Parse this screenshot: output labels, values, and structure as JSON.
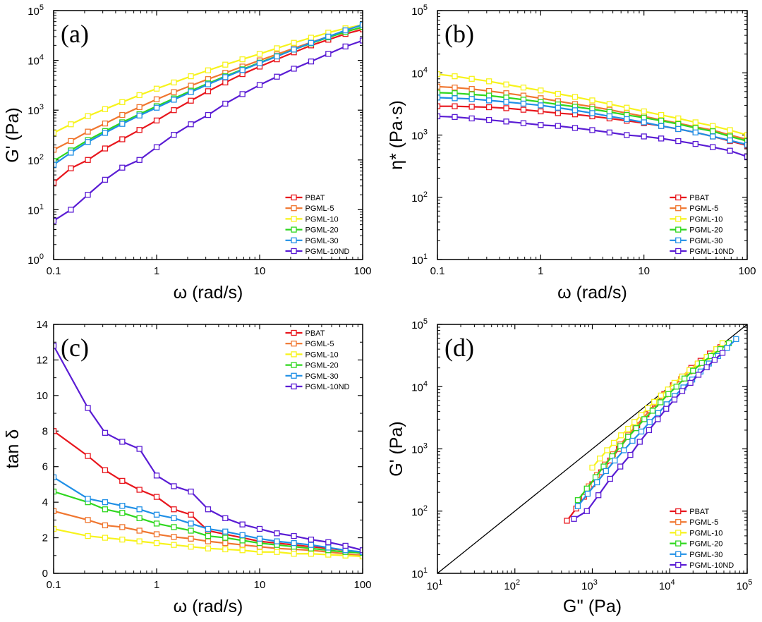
{
  "series_colors": {
    "PBAT": "#e8161d",
    "PGML-5": "#f0762f",
    "PGML-10": "#f7f31c",
    "PGML-20": "#2fd71f",
    "PGML-30": "#1f8fe6",
    "PGML-10ND": "#5a1cd4"
  },
  "marker": "open-square",
  "chart_data": [
    {
      "panel": "(a)",
      "type": "line",
      "xscale": "log",
      "yscale": "log",
      "xlabel": "ω (rad/s)",
      "ylabel": "G' (Pa)",
      "xlim": [
        0.1,
        100
      ],
      "ylim": [
        1,
        100000
      ],
      "xticks": [
        0.1,
        1,
        10,
        100
      ],
      "xticklabels": [
        "0.1",
        "1",
        "10",
        "100"
      ],
      "yticks": [
        1,
        10,
        100,
        1000,
        10000,
        100000
      ],
      "ytick_exponents": [
        "0",
        "1",
        "2",
        "3",
        "4",
        "5"
      ],
      "legend_position": "bottom-right",
      "x": [
        0.1,
        0.147,
        0.215,
        0.316,
        0.464,
        0.681,
        1.0,
        1.47,
        2.15,
        3.16,
        4.64,
        6.81,
        10,
        14.7,
        21.5,
        31.6,
        46.4,
        68.1,
        100
      ],
      "series": [
        {
          "name": "PBAT",
          "values": [
            35,
            68,
            100,
            170,
            260,
            400,
            620,
            1000,
            1550,
            2400,
            3600,
            5300,
            7500,
            10500,
            14500,
            20000,
            26000,
            34000,
            42000
          ]
        },
        {
          "name": "PGML-5",
          "values": [
            160,
            240,
            370,
            540,
            800,
            1150,
            1650,
            2300,
            3100,
            4200,
            5600,
            7500,
            10000,
            13200,
            17500,
            23000,
            30000,
            38000,
            46000
          ]
        },
        {
          "name": "PGML-10",
          "values": [
            350,
            520,
            760,
            1050,
            1450,
            2000,
            2700,
            3600,
            4800,
            6300,
            8200,
            10500,
            13500,
            17500,
            22500,
            28500,
            36000,
            44000,
            52000
          ]
        },
        {
          "name": "PGML-20",
          "values": [
            95,
            155,
            250,
            380,
            570,
            830,
            1200,
            1720,
            2450,
            3450,
            4800,
            6600,
            9000,
            12200,
            16500,
            22000,
            29000,
            37000,
            47000
          ]
        },
        {
          "name": "PGML-30",
          "values": [
            80,
            140,
            230,
            350,
            530,
            780,
            1120,
            1620,
            2300,
            3300,
            4600,
            6400,
            8800,
            12000,
            16500,
            22500,
            30000,
            40000,
            52000
          ]
        },
        {
          "name": "PGML-10ND",
          "values": [
            6,
            10,
            20,
            40,
            70,
            100,
            180,
            320,
            520,
            800,
            1350,
            2100,
            3200,
            4700,
            6800,
            9500,
            13500,
            19000,
            25000
          ]
        }
      ]
    },
    {
      "panel": "(b)",
      "type": "line",
      "xscale": "log",
      "yscale": "log",
      "xlabel": "ω (rad/s)",
      "ylabel": "η* (Pa·s)",
      "xlim": [
        0.1,
        100
      ],
      "ylim": [
        10,
        100000
      ],
      "xticks": [
        0.1,
        1,
        10,
        100
      ],
      "xticklabels": [
        "0.1",
        "1",
        "10",
        "100"
      ],
      "yticks": [
        10,
        100,
        1000,
        10000,
        100000
      ],
      "ytick_exponents": [
        "1",
        "2",
        "3",
        "4",
        "5"
      ],
      "legend_position": "bottom-right",
      "x": [
        0.1,
        0.147,
        0.215,
        0.316,
        0.464,
        0.681,
        1.0,
        1.47,
        2.15,
        3.16,
        4.64,
        6.81,
        10,
        14.7,
        21.5,
        31.6,
        46.4,
        68.1,
        100
      ],
      "series": [
        {
          "name": "PBAT",
          "values": [
            2900,
            2900,
            2850,
            2800,
            2700,
            2550,
            2400,
            2250,
            2150,
            2000,
            1850,
            1700,
            1550,
            1400,
            1250,
            1100,
            950,
            800,
            680
          ]
        },
        {
          "name": "PGML-5",
          "values": [
            6000,
            5800,
            5500,
            5100,
            4700,
            4300,
            3900,
            3500,
            3150,
            2850,
            2550,
            2250,
            2000,
            1750,
            1550,
            1350,
            1200,
            1000,
            850
          ]
        },
        {
          "name": "PGML-10",
          "values": [
            9500,
            8800,
            8000,
            7300,
            6500,
            5800,
            5200,
            4600,
            4100,
            3600,
            3150,
            2750,
            2400,
            2100,
            1850,
            1600,
            1400,
            1200,
            1000
          ]
        },
        {
          "name": "PGML-20",
          "values": [
            4800,
            4700,
            4500,
            4300,
            4000,
            3700,
            3400,
            3100,
            2850,
            2600,
            2350,
            2100,
            1900,
            1700,
            1500,
            1300,
            1150,
            950,
            800
          ]
        },
        {
          "name": "PGML-30",
          "values": [
            4000,
            3900,
            3800,
            3600,
            3400,
            3200,
            3000,
            2750,
            2500,
            2250,
            2000,
            1800,
            1600,
            1400,
            1250,
            1100,
            950,
            820,
            700
          ]
        },
        {
          "name": "PGML-10ND",
          "values": [
            2000,
            1950,
            1850,
            1750,
            1650,
            1550,
            1450,
            1400,
            1300,
            1200,
            1100,
            1000,
            950,
            880,
            800,
            720,
            640,
            560,
            450
          ]
        }
      ]
    },
    {
      "panel": "(c)",
      "type": "line",
      "xscale": "log",
      "yscale": "linear",
      "xlabel": "ω (rad/s)",
      "ylabel": "tan δ",
      "xlim": [
        0.1,
        100
      ],
      "ylim": [
        0,
        14
      ],
      "xticks": [
        0.1,
        1,
        10,
        100
      ],
      "xticklabels": [
        "0.1",
        "1",
        "10",
        "100"
      ],
      "yticks": [
        0,
        2,
        4,
        6,
        8,
        10,
        12,
        14
      ],
      "yticklabels": [
        "0",
        "2",
        "4",
        "6",
        "8",
        "10",
        "12",
        "14"
      ],
      "legend_position": "top-right",
      "x": [
        0.1,
        0.215,
        0.316,
        0.464,
        0.681,
        1.0,
        1.47,
        2.15,
        3.16,
        4.64,
        6.81,
        10,
        14.7,
        21.5,
        31.6,
        46.4,
        68.1,
        100
      ],
      "series": [
        {
          "name": "PBAT",
          "values": [
            8.0,
            6.6,
            5.8,
            5.2,
            4.7,
            4.3,
            3.6,
            3.3,
            2.4,
            2.2,
            2.0,
            1.8,
            1.7,
            1.6,
            1.5,
            1.4,
            1.3,
            1.1
          ]
        },
        {
          "name": "PGML-5",
          "values": [
            3.5,
            3.0,
            2.7,
            2.6,
            2.4,
            2.2,
            2.05,
            1.95,
            1.8,
            1.7,
            1.6,
            1.5,
            1.4,
            1.35,
            1.3,
            1.2,
            1.1,
            1.0
          ]
        },
        {
          "name": "PGML-10",
          "values": [
            2.5,
            2.1,
            2.0,
            1.9,
            1.8,
            1.7,
            1.6,
            1.5,
            1.4,
            1.35,
            1.3,
            1.2,
            1.2,
            1.1,
            1.1,
            1.05,
            1.0,
            0.95
          ]
        },
        {
          "name": "PGML-20",
          "values": [
            4.6,
            4.0,
            3.6,
            3.4,
            3.1,
            2.8,
            2.6,
            2.4,
            2.1,
            2.0,
            1.85,
            1.7,
            1.6,
            1.5,
            1.4,
            1.3,
            1.2,
            1.15
          ]
        },
        {
          "name": "PGML-30",
          "values": [
            5.4,
            4.2,
            4.0,
            3.8,
            3.6,
            3.3,
            3.1,
            2.8,
            2.5,
            2.35,
            2.15,
            1.95,
            1.8,
            1.7,
            1.6,
            1.45,
            1.3,
            1.2
          ]
        },
        {
          "name": "PGML-10ND",
          "values": [
            12.8,
            9.3,
            7.9,
            7.4,
            7.0,
            5.5,
            4.9,
            4.6,
            3.6,
            3.1,
            2.75,
            2.5,
            2.25,
            2.1,
            1.9,
            1.75,
            1.55,
            1.3
          ]
        }
      ]
    },
    {
      "panel": "(d)",
      "type": "scatter",
      "xscale": "log",
      "yscale": "log",
      "xlabel": "G'' (Pa)",
      "ylabel": "G' (Pa)",
      "xlim": [
        10,
        100000
      ],
      "ylim": [
        10,
        100000
      ],
      "xticks": [
        10,
        100,
        1000,
        10000,
        100000
      ],
      "xtick_exponents": [
        "1",
        "2",
        "3",
        "4",
        "5"
      ],
      "yticks": [
        10,
        100,
        1000,
        10000,
        100000
      ],
      "ytick_exponents": [
        "1",
        "2",
        "3",
        "4",
        "5"
      ],
      "legend_position": "bottom-right",
      "reference_line": {
        "from": [
          10,
          10
        ],
        "to": [
          100000,
          100000
        ]
      },
      "series": [
        {
          "name": "PBAT",
          "x": [
            470,
            620,
            780,
            1000,
            1300,
            1700,
            2200,
            2900,
            3800,
            5000,
            6500,
            8500,
            11000,
            14500,
            19000,
            25000,
            33000,
            45000
          ],
          "y": [
            70,
            110,
            170,
            270,
            420,
            650,
            1000,
            1550,
            2400,
            3600,
            5300,
            7600,
            10500,
            14500,
            20000,
            26000,
            34000,
            43000
          ]
        },
        {
          "name": "PGML-5",
          "x": [
            900,
            1150,
            1450,
            1850,
            2300,
            2900,
            3600,
            4500,
            5600,
            7000,
            8800,
            11000,
            14000,
            18000,
            23000,
            30000,
            40000
          ],
          "y": [
            250,
            380,
            560,
            820,
            1180,
            1650,
            2300,
            3100,
            4200,
            5600,
            7500,
            10000,
            13200,
            17500,
            23000,
            30000,
            40000
          ]
        },
        {
          "name": "PGML-10",
          "x": [
            1000,
            1250,
            1550,
            1900,
            2350,
            2900,
            3500,
            4300,
            5200,
            6300,
            7700,
            9500,
            11500,
            14500,
            18000,
            23000,
            30000,
            40000,
            48000
          ],
          "y": [
            500,
            700,
            950,
            1250,
            1650,
            2100,
            2700,
            3500,
            4500,
            5700,
            7200,
            9000,
            11500,
            14500,
            18500,
            23500,
            30000,
            40000,
            50000
          ]
        },
        {
          "name": "PGML-20",
          "x": [
            650,
            850,
            1100,
            1400,
            1800,
            2300,
            2900,
            3700,
            4700,
            6000,
            7600,
            9600,
            12200,
            15500,
            20000,
            26000,
            34000,
            45000,
            58000
          ],
          "y": [
            150,
            230,
            350,
            520,
            760,
            1100,
            1550,
            2150,
            3000,
            4100,
            5600,
            7600,
            10000,
            13500,
            18000,
            24000,
            31000,
            40000,
            50000
          ]
        },
        {
          "name": "PGML-30",
          "x": [
            650,
            870,
            1150,
            1500,
            1950,
            2550,
            3300,
            4300,
            5500,
            7100,
            9100,
            11600,
            15000,
            19500,
            25000,
            32000,
            42000,
            55000,
            72000
          ],
          "y": [
            120,
            190,
            290,
            440,
            650,
            950,
            1350,
            1900,
            2700,
            3750,
            5200,
            7100,
            9700,
            13000,
            17500,
            23500,
            31000,
            42000,
            58000
          ]
        },
        {
          "name": "PGML-10ND",
          "x": [
            580,
            850,
            1200,
            1700,
            2300,
            3100,
            4100,
            5400,
            7000,
            9000,
            11500,
            14500,
            18500,
            23500,
            30000,
            38000,
            48000
          ],
          "y": [
            75,
            100,
            180,
            330,
            520,
            800,
            1300,
            2000,
            3000,
            4400,
            6200,
            8500,
            11500,
            15500,
            20500,
            27000,
            35000
          ]
        }
      ]
    }
  ]
}
